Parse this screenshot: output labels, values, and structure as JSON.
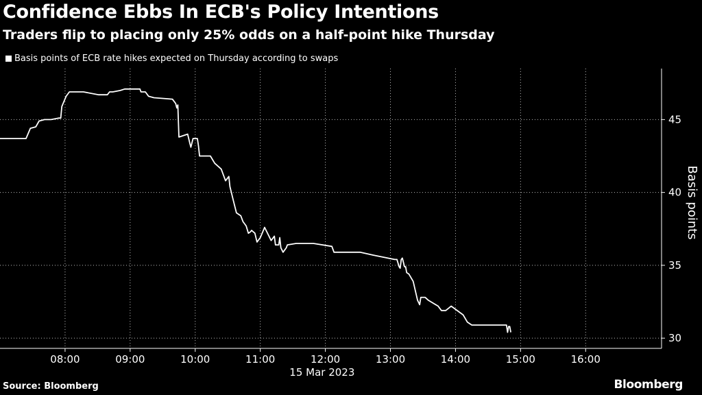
{
  "chart_data": {
    "type": "line",
    "title": "Confidence Ebbs In ECB's Policy Intentions",
    "subtitle": "Traders flip to placing only 25% odds on a half-point hike Thursday",
    "legend": "Basis points of ECB rate hikes expected on Thursday according to swaps",
    "ylabel": "Basis points",
    "date_label": "15 Mar 2023",
    "source": "Source: Bloomberg",
    "brand": "Bloomberg",
    "ylim": [
      29.3,
      48.5
    ],
    "yticks": [
      30,
      35,
      40,
      45
    ],
    "xlim": [
      "07:00",
      "17:10"
    ],
    "xticks": [
      "08:00",
      "09:00",
      "10:00",
      "11:00",
      "12:00",
      "13:00",
      "14:00",
      "15:00",
      "16:00"
    ],
    "colors": {
      "background": "#000000",
      "line": "#ffffff",
      "grid": "#ffffff"
    },
    "series": [
      {
        "x": [
          "07:00",
          "07:24",
          "07:28",
          "07:33",
          "07:36",
          "07:41",
          "07:47",
          "07:54",
          "07:56",
          "07:57",
          "08:01",
          "08:04",
          "08:17",
          "08:31",
          "08:32",
          "08:39",
          "08:41",
          "08:44",
          "08:51",
          "08:55",
          "09:09",
          "09:10",
          "09:14",
          "09:15",
          "09:17",
          "09:22",
          "09:39",
          "09:42",
          "09:43",
          "09:44",
          "09:45",
          "09:53",
          "09:55",
          "09:56",
          "09:58",
          "10:02",
          "10:03",
          "10:04",
          "10:14",
          "10:18",
          "10:24",
          "10:28",
          "10:31",
          "10:32",
          "10:35",
          "10:38",
          "10:42",
          "10:44",
          "10:47",
          "10:49",
          "10:51",
          "10:52",
          "10:55",
          "10:57",
          "11:00",
          "11:04",
          "11:10",
          "11:13",
          "11:14",
          "11:17",
          "11:18",
          "11:19",
          "11:21",
          "11:24",
          "11:25",
          "11:33",
          "11:49",
          "12:06",
          "12:08",
          "12:25",
          "12:32",
          "12:44",
          "13:04",
          "13:06",
          "13:08",
          "13:09",
          "13:10",
          "13:11",
          "13:13",
          "13:14",
          "13:15",
          "13:17",
          "13:21",
          "13:25",
          "13:27",
          "13:28",
          "13:32",
          "13:35",
          "13:44",
          "13:47",
          "13:51",
          "13:56",
          "14:07",
          "14:11",
          "14:15",
          "14:22",
          "14:24",
          "14:27",
          "14:47",
          "14:48",
          "14:49",
          "14:50",
          "14:51"
        ],
        "y": [
          43.7,
          43.7,
          44.4,
          44.5,
          44.9,
          45.0,
          45.0,
          45.1,
          45.1,
          45.9,
          46.6,
          46.9,
          46.9,
          46.7,
          46.7,
          46.7,
          46.9,
          46.9,
          47.0,
          47.1,
          47.1,
          46.9,
          46.9,
          46.8,
          46.6,
          46.5,
          46.4,
          46.1,
          45.8,
          46.0,
          43.8,
          44.0,
          43.4,
          43.1,
          43.7,
          43.7,
          43.2,
          42.5,
          42.5,
          42.0,
          41.6,
          40.8,
          41.1,
          40.4,
          39.5,
          38.6,
          38.4,
          38.0,
          37.7,
          37.2,
          37.3,
          37.4,
          37.2,
          36.6,
          36.9,
          37.6,
          36.7,
          37.0,
          36.4,
          36.4,
          36.9,
          36.2,
          35.9,
          36.2,
          36.4,
          36.5,
          36.5,
          36.3,
          35.9,
          35.9,
          35.9,
          35.7,
          35.4,
          35.4,
          34.9,
          34.8,
          35.4,
          35.5,
          34.9,
          34.9,
          34.5,
          34.4,
          33.9,
          32.6,
          32.3,
          32.8,
          32.8,
          32.6,
          32.2,
          31.9,
          31.9,
          32.2,
          31.6,
          31.1,
          30.9,
          30.9,
          30.9,
          30.9,
          30.9,
          30.4,
          30.8,
          30.8,
          30.4
        ]
      }
    ]
  }
}
